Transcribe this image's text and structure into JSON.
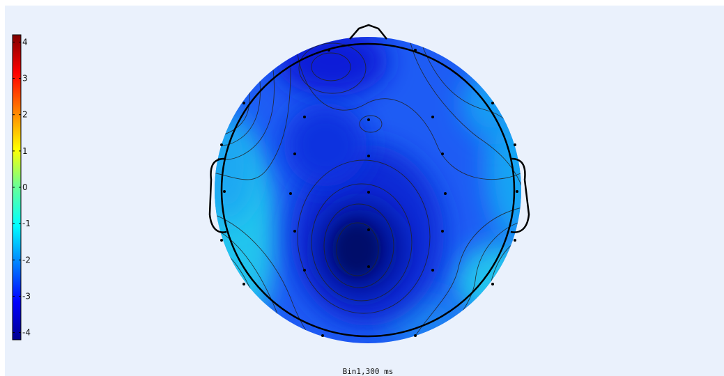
{
  "chart_data": {
    "type": "heatmap",
    "subtype": "eeg-scalp-topography",
    "title": "Bin1,300 ms",
    "colorbar": {
      "range": [
        -4.2,
        4.2
      ],
      "ticks": [
        4,
        3,
        2,
        1,
        0,
        -1,
        -2,
        -3,
        -4
      ],
      "tick_labels": [
        "4",
        "3",
        "2",
        "1",
        "0",
        "-1",
        "-2",
        "-3",
        "-4"
      ],
      "colormap": "jet",
      "placement": "left"
    },
    "contours": true,
    "electrode_markers": true,
    "head_outline": {
      "nose": "top",
      "ears": true
    }
  }
}
